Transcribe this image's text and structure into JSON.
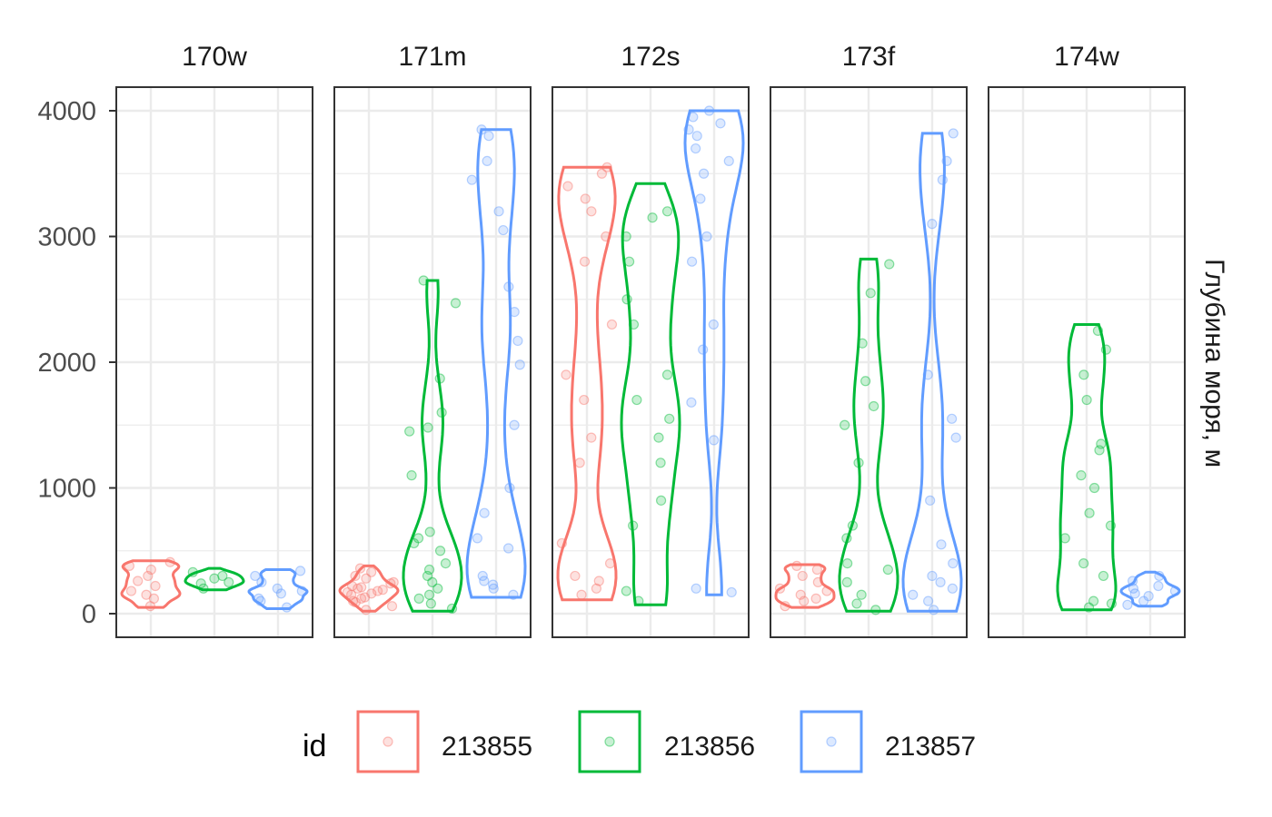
{
  "chart_data": {
    "type": "violin",
    "ylabel": "Глубина моря, м",
    "ylim": [
      0,
      4000
    ],
    "yticks": [
      0,
      1000,
      2000,
      3000,
      4000
    ],
    "grid": true,
    "legend_position": "bottom",
    "legend": {
      "title": "id",
      "entries": [
        {
          "label": "213855",
          "color": "#F8766D"
        },
        {
          "label": "213856",
          "color": "#00BA38"
        },
        {
          "label": "213857",
          "color": "#619CFF"
        }
      ]
    },
    "facets": [
      {
        "label": "170w",
        "series": [
          {
            "id": "213855",
            "min": 50,
            "max": 420,
            "points": [
              60,
              120,
              180,
              260,
              300,
              350,
              380,
              410,
              220,
              150
            ]
          },
          {
            "id": "213856",
            "min": 190,
            "max": 360,
            "points": [
              200,
              250,
              300,
              330,
              280,
              240
            ]
          },
          {
            "id": "213857",
            "min": 40,
            "max": 350,
            "points": [
              50,
              100,
              160,
              200,
              250,
              300,
              340,
              180,
              120
            ]
          }
        ]
      },
      {
        "label": "171m",
        "series": [
          {
            "id": "213855",
            "min": 20,
            "max": 380,
            "points": [
              30,
              60,
              100,
              130,
              160,
              180,
              200,
              220,
              250,
              280,
              300,
              330,
              360,
              150,
              190,
              210,
              120,
              170,
              240,
              90
            ]
          },
          {
            "id": "213856",
            "min": 20,
            "max": 2650,
            "points": [
              40,
              80,
              120,
              200,
              300,
              400,
              500,
              560,
              600,
              650,
              1100,
              1450,
              1480,
              1600,
              1870,
              2470,
              2650,
              350,
              250,
              150
            ]
          },
          {
            "id": "213857",
            "min": 130,
            "max": 3850,
            "points": [
              150,
              200,
              230,
              260,
              300,
              520,
              600,
              800,
              1000,
              1500,
              1980,
              2170,
              2400,
              2600,
              3050,
              3200,
              3450,
              3600,
              3800,
              3850
            ]
          }
        ]
      },
      {
        "label": "172s",
        "series": [
          {
            "id": "213855",
            "min": 110,
            "max": 3550,
            "points": [
              150,
              200,
              260,
              300,
              400,
              560,
              1200,
              1400,
              1700,
              1900,
              2300,
              2800,
              3000,
              3200,
              3300,
              3400,
              3500,
              3550
            ]
          },
          {
            "id": "213856",
            "min": 70,
            "max": 3420,
            "points": [
              100,
              180,
              700,
              900,
              1200,
              1400,
              1550,
              1700,
              1900,
              2300,
              2500,
              2800,
              3000,
              3150,
              3200
            ]
          },
          {
            "id": "213857",
            "min": 150,
            "max": 4000,
            "points": [
              170,
              200,
              1380,
              1680,
              2100,
              2300,
              2800,
              3000,
              3300,
              3500,
              3600,
              3700,
              3800,
              3850,
              3900,
              3950,
              4000
            ]
          }
        ]
      },
      {
        "label": "173f",
        "series": [
          {
            "id": "213855",
            "min": 50,
            "max": 390,
            "points": [
              60,
              100,
              150,
              200,
              250,
              300,
              350,
              380,
              180,
              120
            ]
          },
          {
            "id": "213856",
            "min": 20,
            "max": 2820,
            "points": [
              30,
              80,
              150,
              250,
              350,
              400,
              600,
              700,
              1200,
              1500,
              1650,
              1850,
              2150,
              2550,
              2780
            ]
          },
          {
            "id": "213857",
            "min": 20,
            "max": 3820,
            "points": [
              30,
              100,
              150,
              200,
              250,
              300,
              400,
              550,
              900,
              1400,
              1550,
              1900,
              3100,
              3450,
              3600,
              3820
            ]
          }
        ]
      },
      {
        "label": "174w",
        "series": [
          {
            "id": "213856",
            "min": 30,
            "max": 2300,
            "points": [
              50,
              80,
              100,
              300,
              400,
              600,
              700,
              800,
              1000,
              1100,
              1300,
              1350,
              1700,
              1900,
              2100,
              2250
            ]
          },
          {
            "id": "213857",
            "min": 60,
            "max": 330,
            "points": [
              70,
              100,
              140,
              180,
              220,
              260,
              300,
              200,
              160
            ]
          }
        ]
      }
    ]
  }
}
